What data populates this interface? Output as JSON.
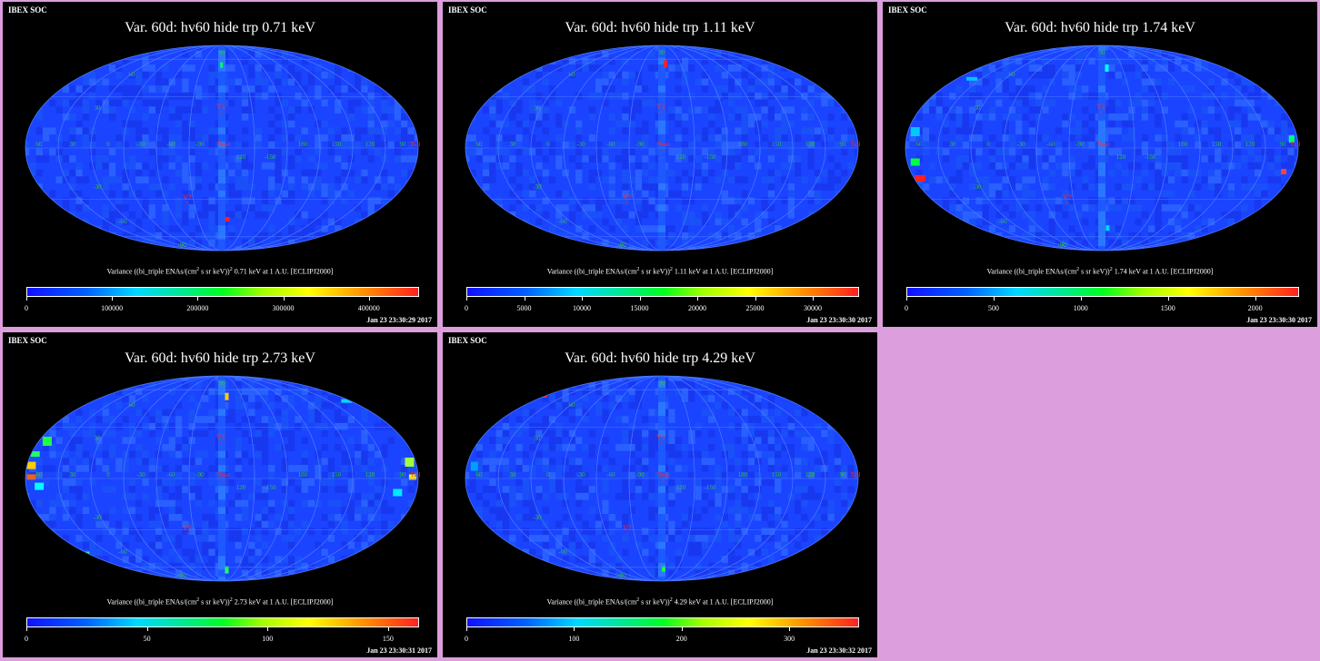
{
  "soc_label": "IBEX SOC",
  "colors": {
    "page_bg": "#dc9edc",
    "panel_bg": "#000000",
    "map_base": "#1a44ff",
    "grid": "#4a78ff",
    "grid_label": "#2ec42e",
    "marker": "#ff2a2a"
  },
  "map_labels": {
    "lat_top": "90",
    "lat_bottom": "-90",
    "lat_n60": "60",
    "lat_n30": "30",
    "lat_s30": "-30",
    "lat_s60": "-60",
    "lon_labels": [
      "60",
      "30",
      "0",
      "-30",
      "-60",
      "-90",
      "120",
      "-150",
      "180",
      "150",
      "120",
      "90"
    ],
    "v1": "V1",
    "v2": "V2",
    "nose": "Nose",
    "tail": "Tail"
  },
  "panels": [
    {
      "title": "Var. 60d: hv60 hide trp 0.71 keV",
      "energy": "0.71",
      "ticks": [
        "0",
        "100000",
        "200000",
        "300000",
        "400000"
      ],
      "tick_pos": [
        0,
        0.218,
        0.436,
        0.654,
        0.872
      ],
      "date": "Jan 23 23:30:29 2017"
    },
    {
      "title": "Var. 60d: hv60 hide trp 1.11 keV",
      "energy": "1.11",
      "ticks": [
        "0",
        "5000",
        "10000",
        "15000",
        "20000",
        "25000",
        "30000"
      ],
      "tick_pos": [
        0,
        0.147,
        0.294,
        0.441,
        0.588,
        0.735,
        0.882
      ],
      "date": "Jan 23 23:30:30 2017"
    },
    {
      "title": "Var. 60d: hv60 hide trp 1.74 keV",
      "energy": "1.74",
      "ticks": [
        "0",
        "500",
        "1000",
        "1500",
        "2000"
      ],
      "tick_pos": [
        0,
        0.222,
        0.444,
        0.666,
        0.888
      ],
      "date": "Jan 23 23:30:30 2017"
    },
    {
      "title": "Var. 60d: hv60 hide trp 2.73 keV",
      "energy": "2.73",
      "ticks": [
        "0",
        "50",
        "100",
        "150"
      ],
      "tick_pos": [
        0,
        0.307,
        0.614,
        0.921
      ],
      "date": "Jan 23 23:30:31 2017"
    },
    {
      "title": "Var. 60d: hv60 hide trp 4.29 keV",
      "energy": "4.29",
      "ticks": [
        "0",
        "100",
        "200",
        "300"
      ],
      "tick_pos": [
        0,
        0.274,
        0.548,
        0.822
      ],
      "date": "Jan 23 23:30:32 2017"
    }
  ],
  "unit_text": {
    "prefix": "Variance ((bi_triple ENAs/(cm",
    "sup": "2",
    "middle": " s sr keV))",
    "sup2": "2",
    "suffix": " keV at 1 A.U. [ECLIPJ2000]"
  }
}
